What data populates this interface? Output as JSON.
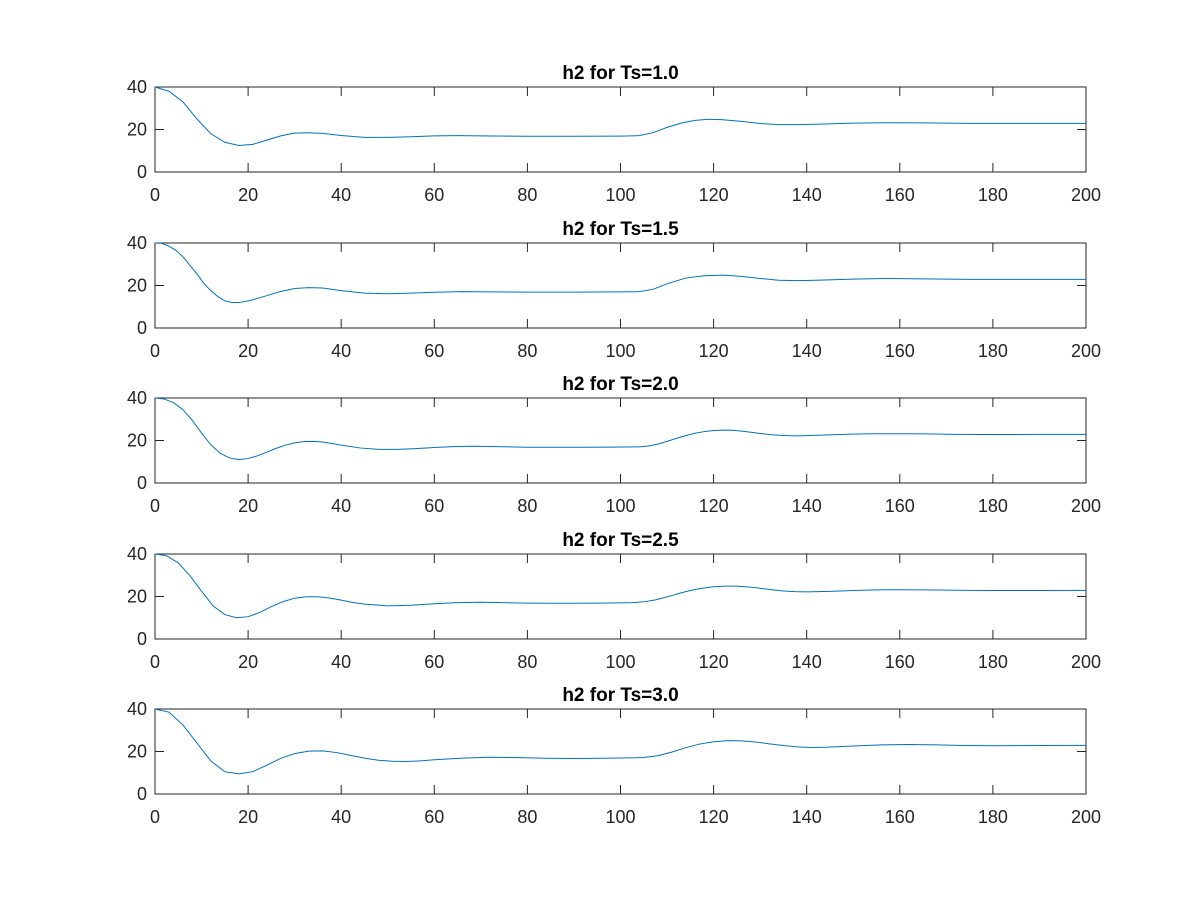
{
  "chart_data": [
    {
      "type": "line",
      "title": "h2 for Ts=1.0",
      "xlabel": "",
      "ylabel": "",
      "xlim": [
        0,
        200
      ],
      "ylim": [
        0,
        40
      ],
      "xticks": [
        0,
        20,
        40,
        60,
        80,
        100,
        120,
        140,
        160,
        180,
        200
      ],
      "yticks": [
        0,
        20,
        40
      ],
      "grid": false,
      "color": "#0072BD",
      "series": [
        {
          "x": [
            0,
            3,
            6,
            9,
            12,
            15,
            18,
            21,
            24,
            27,
            30,
            33,
            36,
            40,
            45,
            50,
            55,
            60,
            65,
            70,
            80,
            90,
            100,
            104,
            107,
            110,
            113,
            116,
            119,
            122,
            126,
            130,
            134,
            138,
            142,
            150,
            157,
            165,
            175,
            185,
            200
          ],
          "y": [
            40,
            38,
            33,
            25,
            18,
            14,
            12.5,
            13,
            15,
            17,
            18.3,
            18.5,
            18.2,
            17.2,
            16.3,
            16.3,
            16.6,
            17,
            17.1,
            17,
            16.8,
            16.8,
            16.9,
            17.1,
            18.5,
            21,
            23,
            24.3,
            24.8,
            24.6,
            23.8,
            22.8,
            22.3,
            22.3,
            22.5,
            23,
            23.2,
            23.1,
            22.9,
            22.9,
            22.9
          ]
        }
      ]
    },
    {
      "type": "line",
      "title": "h2 for Ts=1.5",
      "xlabel": "",
      "ylabel": "",
      "xlim": [
        0,
        200
      ],
      "ylim": [
        0,
        40
      ],
      "xticks": [
        0,
        20,
        40,
        60,
        80,
        100,
        120,
        140,
        160,
        180,
        200
      ],
      "yticks": [
        0,
        20,
        40
      ],
      "grid": false,
      "color": "#0072BD",
      "series": [
        {
          "x": [
            0,
            1.5,
            3,
            4.5,
            6,
            7.5,
            9,
            10.5,
            12,
            13.5,
            15,
            16.5,
            18,
            19.5,
            21,
            24,
            27,
            30,
            33,
            36,
            40,
            45,
            50,
            55,
            60,
            66,
            72,
            80,
            90,
            100,
            104,
            107,
            110,
            114,
            118,
            122,
            126,
            130,
            134,
            138,
            142,
            150,
            157,
            165,
            175,
            185,
            200
          ],
          "y": [
            40,
            39.8,
            38.5,
            36.5,
            33.5,
            29.5,
            25.5,
            21,
            17.5,
            14.8,
            12.8,
            12,
            12,
            12.5,
            13.3,
            15.2,
            17.2,
            18.6,
            19,
            18.8,
            17.6,
            16.4,
            16.1,
            16.4,
            16.8,
            17.1,
            17,
            16.9,
            16.9,
            17,
            17.1,
            18.2,
            20.8,
            23.5,
            24.6,
            24.9,
            24.3,
            23.3,
            22.5,
            22.3,
            22.5,
            23,
            23.3,
            23.1,
            22.9,
            22.9,
            22.9
          ]
        }
      ]
    },
    {
      "type": "line",
      "title": "h2 for Ts=2.0",
      "xlabel": "",
      "ylabel": "",
      "xlim": [
        0,
        200
      ],
      "ylim": [
        0,
        40
      ],
      "xticks": [
        0,
        20,
        40,
        60,
        80,
        100,
        120,
        140,
        160,
        180,
        200
      ],
      "yticks": [
        0,
        20,
        40
      ],
      "grid": false,
      "color": "#0072BD",
      "series": [
        {
          "x": [
            0,
            2,
            4,
            6,
            8,
            10,
            12,
            14,
            16,
            18,
            20,
            22,
            24,
            26,
            28,
            30,
            32,
            34,
            36,
            38,
            40,
            44,
            48,
            52,
            56,
            60,
            64,
            68,
            72,
            76,
            80,
            86,
            92,
            98,
            104,
            106,
            108,
            110,
            112,
            114,
            116,
            118,
            120,
            122,
            124,
            126,
            128,
            130,
            132,
            134,
            136,
            138,
            140,
            144,
            148,
            152,
            156,
            160,
            166,
            172,
            178,
            184,
            190,
            196,
            200
          ],
          "y": [
            40,
            39.5,
            37.8,
            34.5,
            29.5,
            23.5,
            18,
            14,
            11.8,
            11,
            11.5,
            12.8,
            14.5,
            16.3,
            17.8,
            18.9,
            19.5,
            19.6,
            19.3,
            18.6,
            17.8,
            16.5,
            15.8,
            15.8,
            16.2,
            16.7,
            17.1,
            17.3,
            17.2,
            17,
            16.8,
            16.8,
            16.8,
            16.9,
            17,
            17.4,
            18.3,
            19.6,
            21,
            22.3,
            23.4,
            24.2,
            24.7,
            24.9,
            24.8,
            24.4,
            23.9,
            23.3,
            22.8,
            22.5,
            22.3,
            22.2,
            22.3,
            22.6,
            22.9,
            23.1,
            23.2,
            23.2,
            23.1,
            22.9,
            22.8,
            22.8,
            22.9,
            22.9,
            22.9
          ]
        }
      ]
    },
    {
      "type": "line",
      "title": "h2 for Ts=2.5",
      "xlabel": "",
      "ylabel": "",
      "xlim": [
        0,
        200
      ],
      "ylim": [
        0,
        40
      ],
      "xticks": [
        0,
        20,
        40,
        60,
        80,
        100,
        120,
        140,
        160,
        180,
        200
      ],
      "yticks": [
        0,
        20,
        40
      ],
      "grid": false,
      "color": "#0072BD",
      "series": [
        {
          "x": [
            0,
            2.5,
            5,
            7.5,
            10,
            12.5,
            15,
            17.5,
            20,
            22.5,
            25,
            27.5,
            30,
            32.5,
            35,
            37.5,
            40,
            42.5,
            45,
            50,
            55,
            60,
            65,
            70,
            75,
            80,
            85,
            90,
            95,
            100,
            102.5,
            105,
            107.5,
            110,
            112.5,
            115,
            117.5,
            120,
            122.5,
            125,
            127.5,
            130,
            132.5,
            135,
            137.5,
            140,
            145,
            150,
            155,
            160,
            165,
            170,
            175,
            180,
            190,
            200
          ],
          "y": [
            40,
            39.2,
            35.8,
            29.8,
            22.5,
            15.5,
            11.5,
            10,
            10.5,
            12.5,
            15.2,
            17.6,
            19.2,
            19.9,
            19.9,
            19.3,
            18.3,
            17.2,
            16.4,
            15.6,
            15.9,
            16.6,
            17.1,
            17.3,
            17.1,
            16.9,
            16.8,
            16.8,
            16.9,
            17,
            17.1,
            17.5,
            18.4,
            19.8,
            21.4,
            22.8,
            23.9,
            24.6,
            24.9,
            24.9,
            24.5,
            23.9,
            23.2,
            22.6,
            22.3,
            22.2,
            22.4,
            22.8,
            23.1,
            23.2,
            23.1,
            23,
            22.9,
            22.8,
            22.8,
            22.9
          ]
        }
      ]
    },
    {
      "type": "line",
      "title": "h2 for Ts=3.0",
      "xlabel": "",
      "ylabel": "",
      "xlim": [
        0,
        200
      ],
      "ylim": [
        0,
        40
      ],
      "xticks": [
        0,
        20,
        40,
        60,
        80,
        100,
        120,
        140,
        160,
        180,
        200
      ],
      "yticks": [
        0,
        20,
        40
      ],
      "grid": false,
      "color": "#0072BD",
      "series": [
        {
          "x": [
            0,
            3,
            6,
            9,
            12,
            15,
            18,
            21,
            24,
            27,
            30,
            33,
            36,
            39,
            42,
            45,
            48,
            51,
            54,
            57,
            60,
            66,
            72,
            78,
            84,
            90,
            96,
            102,
            105,
            108,
            111,
            114,
            117,
            120,
            123,
            126,
            129,
            132,
            135,
            138,
            141,
            144,
            150,
            156,
            162,
            168,
            174,
            180,
            190,
            200
          ],
          "y": [
            40,
            38.5,
            32.5,
            24,
            15.5,
            10.5,
            9.5,
            10.5,
            13.5,
            16.8,
            19,
            20.2,
            20.3,
            19.5,
            18.2,
            16.9,
            15.9,
            15.4,
            15.3,
            15.6,
            16.1,
            16.9,
            17.3,
            17.1,
            16.8,
            16.7,
            16.8,
            17,
            17.2,
            18,
            19.7,
            21.8,
            23.5,
            24.6,
            25.1,
            25,
            24.5,
            23.6,
            22.8,
            22.2,
            21.9,
            22,
            22.6,
            23.1,
            23.3,
            23.1,
            22.8,
            22.7,
            22.8,
            22.9
          ]
        }
      ]
    }
  ]
}
